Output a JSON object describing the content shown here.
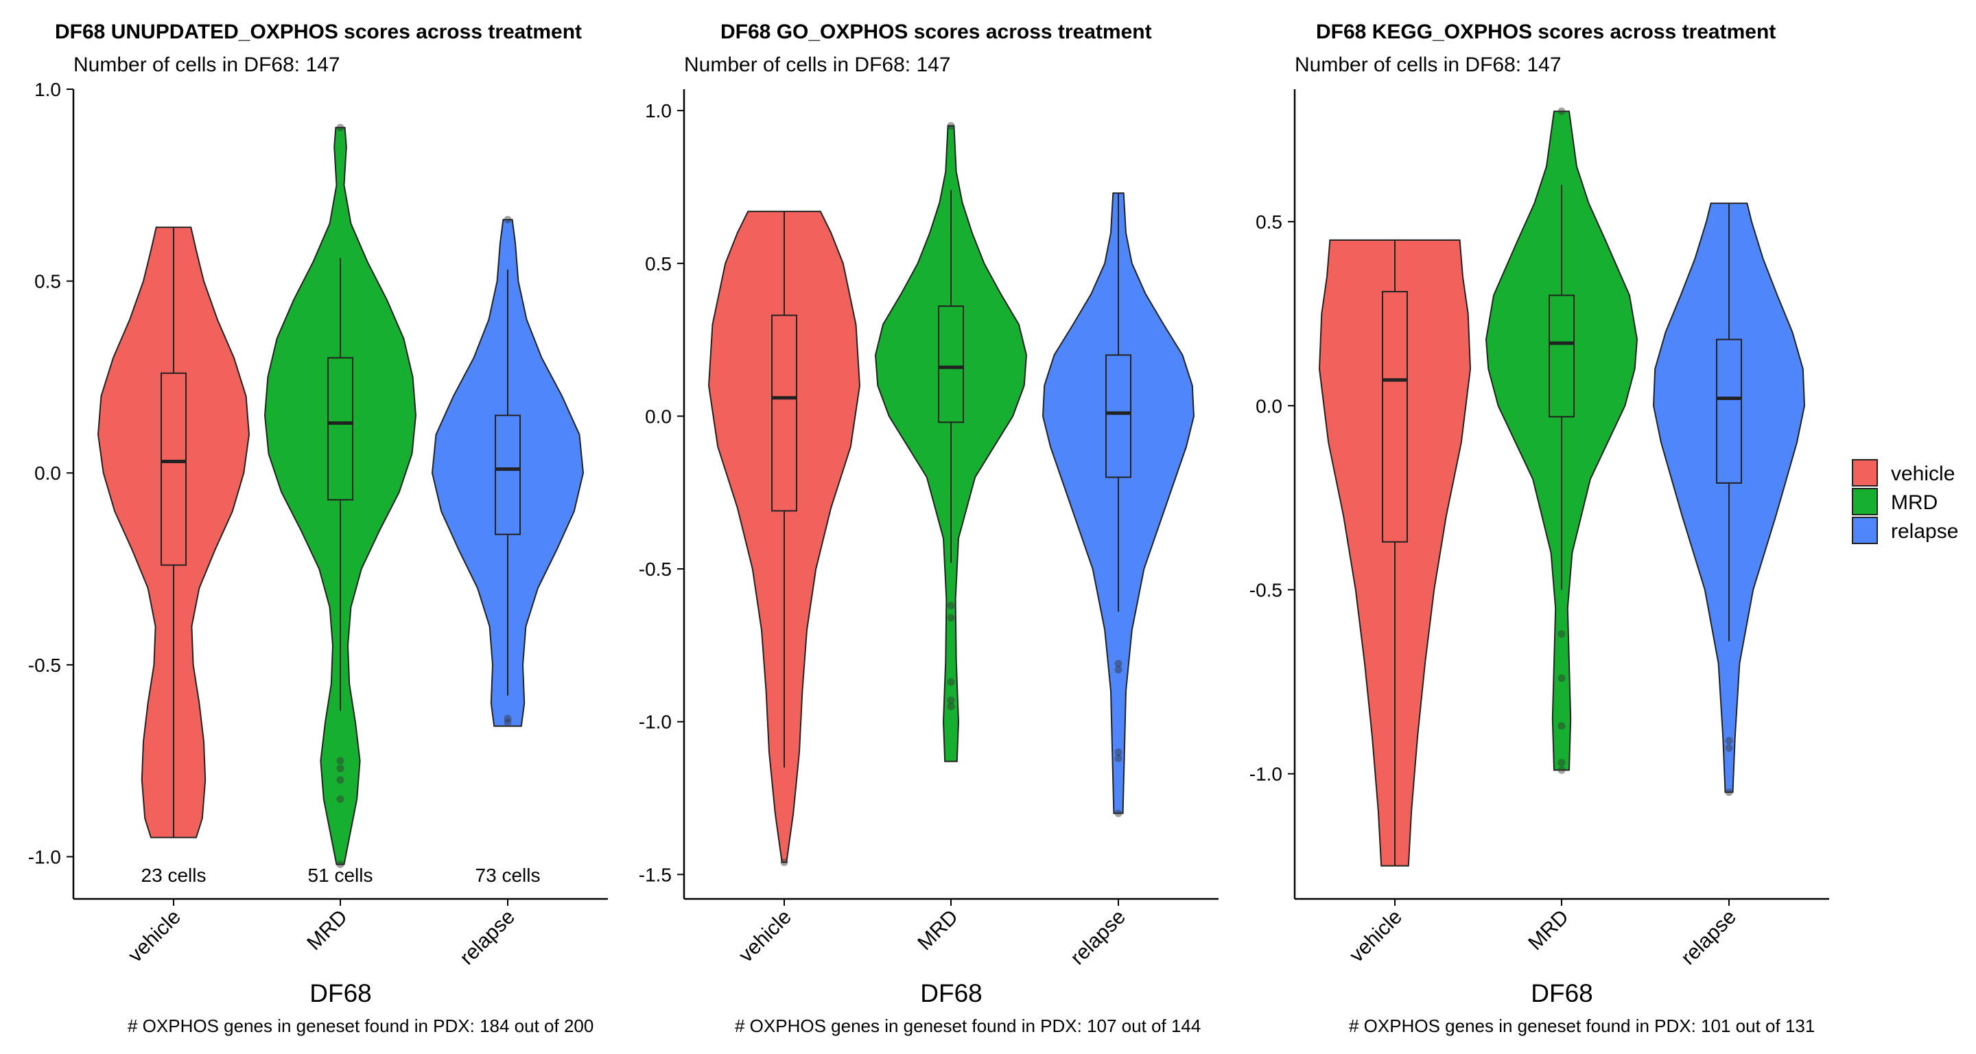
{
  "chart_data": [
    {
      "type": "violin",
      "title": "DF68 UNUPDATED_OXPHOS scores across treatment",
      "subtitle": "Number of cells in DF68: 147",
      "xlabel": "DF68",
      "ylabel": "",
      "caption": "# OXPHOS genes in geneset found in PDX: 184 out of 200",
      "ylim": [
        -1.11,
        1.0
      ],
      "yticks": [
        -1.0,
        -0.5,
        0.0,
        0.5,
        1.0
      ],
      "ytick_labels": [
        "-1.0",
        "-0.5",
        "0.0",
        "0.5",
        "1.0"
      ],
      "categories": [
        "vehicle",
        "MRD",
        "relapse"
      ],
      "cell_counts": [
        "23 cells",
        "51 cells",
        "73 cells"
      ],
      "groups": [
        {
          "name": "vehicle",
          "violin_min": -0.95,
          "violin_max": 0.64,
          "whisker_low": -0.95,
          "q1": -0.24,
          "median": 0.03,
          "q3": 0.26,
          "whisker_high": 0.64,
          "outliers": [],
          "density": [
            [
              -0.95,
              0.3
            ],
            [
              -0.9,
              0.38
            ],
            [
              -0.8,
              0.42
            ],
            [
              -0.7,
              0.4
            ],
            [
              -0.6,
              0.34
            ],
            [
              -0.5,
              0.26
            ],
            [
              -0.4,
              0.24
            ],
            [
              -0.3,
              0.34
            ],
            [
              -0.2,
              0.55
            ],
            [
              -0.1,
              0.78
            ],
            [
              0.0,
              0.93
            ],
            [
              0.1,
              1.0
            ],
            [
              0.2,
              0.96
            ],
            [
              0.3,
              0.8
            ],
            [
              0.4,
              0.58
            ],
            [
              0.5,
              0.4
            ],
            [
              0.58,
              0.3
            ],
            [
              0.64,
              0.23
            ]
          ]
        },
        {
          "name": "MRD",
          "violin_min": -1.02,
          "violin_max": 0.9,
          "whisker_low": -0.62,
          "q1": -0.07,
          "median": 0.13,
          "q3": 0.3,
          "whisker_high": 0.56,
          "outliers": [
            -0.75,
            -0.77,
            -0.8,
            -0.85,
            -1.02,
            0.9
          ],
          "density": [
            [
              -1.02,
              0.05
            ],
            [
              -0.95,
              0.12
            ],
            [
              -0.85,
              0.22
            ],
            [
              -0.75,
              0.26
            ],
            [
              -0.65,
              0.2
            ],
            [
              -0.55,
              0.12
            ],
            [
              -0.45,
              0.1
            ],
            [
              -0.35,
              0.14
            ],
            [
              -0.25,
              0.28
            ],
            [
              -0.15,
              0.52
            ],
            [
              -0.05,
              0.78
            ],
            [
              0.05,
              0.95
            ],
            [
              0.15,
              1.0
            ],
            [
              0.25,
              0.96
            ],
            [
              0.35,
              0.84
            ],
            [
              0.45,
              0.62
            ],
            [
              0.55,
              0.36
            ],
            [
              0.65,
              0.14
            ],
            [
              0.75,
              0.05
            ],
            [
              0.85,
              0.08
            ],
            [
              0.9,
              0.06
            ]
          ]
        },
        {
          "name": "relapse",
          "violin_min": -0.66,
          "violin_max": 0.66,
          "whisker_low": -0.58,
          "q1": -0.16,
          "median": 0.01,
          "q3": 0.15,
          "whisker_high": 0.53,
          "outliers": [
            -0.64,
            -0.65,
            0.66
          ],
          "density": [
            [
              -0.66,
              0.18
            ],
            [
              -0.6,
              0.22
            ],
            [
              -0.5,
              0.2
            ],
            [
              -0.4,
              0.24
            ],
            [
              -0.3,
              0.4
            ],
            [
              -0.2,
              0.65
            ],
            [
              -0.1,
              0.88
            ],
            [
              0.0,
              1.0
            ],
            [
              0.1,
              0.95
            ],
            [
              0.2,
              0.72
            ],
            [
              0.3,
              0.45
            ],
            [
              0.4,
              0.25
            ],
            [
              0.5,
              0.14
            ],
            [
              0.6,
              0.1
            ],
            [
              0.66,
              0.06
            ]
          ]
        }
      ]
    },
    {
      "type": "violin",
      "title": "DF68 GO_OXPHOS scores across treatment",
      "subtitle": "Number of cells in DF68: 147",
      "xlabel": "DF68",
      "ylabel": "",
      "caption": "# OXPHOS genes in geneset found in PDX: 107 out of 144",
      "ylim": [
        -1.58,
        1.07
      ],
      "yticks": [
        -1.5,
        -1.0,
        -0.5,
        0.0,
        0.5,
        1.0
      ],
      "ytick_labels": [
        "-1.5",
        "-1.0",
        "-0.5",
        "0.0",
        "0.5",
        "1.0"
      ],
      "categories": [
        "vehicle",
        "MRD",
        "relapse"
      ],
      "cell_counts": [],
      "groups": [
        {
          "name": "vehicle",
          "violin_min": -1.46,
          "violin_max": 0.67,
          "whisker_low": -1.15,
          "q1": -0.31,
          "median": 0.06,
          "q3": 0.33,
          "whisker_high": 0.67,
          "outliers": [
            -1.46
          ],
          "density": [
            [
              -1.46,
              0.03
            ],
            [
              -1.3,
              0.12
            ],
            [
              -1.1,
              0.2
            ],
            [
              -0.9,
              0.24
            ],
            [
              -0.7,
              0.3
            ],
            [
              -0.5,
              0.42
            ],
            [
              -0.3,
              0.62
            ],
            [
              -0.1,
              0.88
            ],
            [
              0.1,
              1.0
            ],
            [
              0.3,
              0.95
            ],
            [
              0.5,
              0.78
            ],
            [
              0.6,
              0.62
            ],
            [
              0.67,
              0.48
            ]
          ]
        },
        {
          "name": "MRD",
          "violin_min": -1.13,
          "violin_max": 0.95,
          "whisker_low": -0.48,
          "q1": -0.02,
          "median": 0.16,
          "q3": 0.36,
          "whisker_high": 0.74,
          "outliers": [
            -0.62,
            -0.66,
            -0.87,
            -0.93,
            -0.95,
            0.95
          ],
          "density": [
            [
              -1.13,
              0.08
            ],
            [
              -1.0,
              0.1
            ],
            [
              -0.8,
              0.07
            ],
            [
              -0.6,
              0.06
            ],
            [
              -0.4,
              0.1
            ],
            [
              -0.2,
              0.32
            ],
            [
              0.0,
              0.82
            ],
            [
              0.1,
              0.97
            ],
            [
              0.2,
              1.0
            ],
            [
              0.3,
              0.9
            ],
            [
              0.4,
              0.66
            ],
            [
              0.5,
              0.44
            ],
            [
              0.6,
              0.28
            ],
            [
              0.7,
              0.15
            ],
            [
              0.8,
              0.07
            ],
            [
              0.95,
              0.04
            ]
          ]
        },
        {
          "name": "relapse",
          "violin_min": -1.3,
          "violin_max": 0.73,
          "whisker_low": -0.64,
          "q1": -0.2,
          "median": 0.01,
          "q3": 0.2,
          "whisker_high": 0.73,
          "outliers": [
            -0.81,
            -0.83,
            -1.1,
            -1.12,
            -1.3
          ],
          "density": [
            [
              -1.3,
              0.06
            ],
            [
              -1.1,
              0.08
            ],
            [
              -0.9,
              0.1
            ],
            [
              -0.7,
              0.18
            ],
            [
              -0.5,
              0.34
            ],
            [
              -0.3,
              0.62
            ],
            [
              -0.1,
              0.9
            ],
            [
              0.0,
              1.0
            ],
            [
              0.1,
              0.98
            ],
            [
              0.2,
              0.85
            ],
            [
              0.3,
              0.6
            ],
            [
              0.4,
              0.36
            ],
            [
              0.5,
              0.18
            ],
            [
              0.6,
              0.1
            ],
            [
              0.73,
              0.07
            ]
          ]
        }
      ]
    },
    {
      "type": "violin",
      "title": "DF68 KEGG_OXPHOS scores across treatment",
      "subtitle": "Number of cells in DF68: 147",
      "xlabel": "DF68",
      "ylabel": "",
      "caption": "# OXPHOS genes in geneset found in PDX: 101 out of 131",
      "ylim": [
        -1.34,
        0.86
      ],
      "yticks": [
        -1.0,
        -0.5,
        0.0,
        0.5
      ],
      "ytick_labels": [
        "-1.0",
        "-0.5",
        "0.0",
        "0.5"
      ],
      "categories": [
        "vehicle",
        "MRD",
        "relapse"
      ],
      "cell_counts": [],
      "groups": [
        {
          "name": "vehicle",
          "violin_min": -1.25,
          "violin_max": 0.45,
          "whisker_low": -1.25,
          "q1": -0.37,
          "median": 0.07,
          "q3": 0.31,
          "whisker_high": 0.45,
          "outliers": [],
          "density": [
            [
              -1.25,
              0.18
            ],
            [
              -1.1,
              0.22
            ],
            [
              -0.9,
              0.3
            ],
            [
              -0.7,
              0.4
            ],
            [
              -0.5,
              0.52
            ],
            [
              -0.3,
              0.68
            ],
            [
              -0.1,
              0.88
            ],
            [
              0.1,
              1.0
            ],
            [
              0.25,
              0.97
            ],
            [
              0.35,
              0.9
            ],
            [
              0.45,
              0.86
            ]
          ]
        },
        {
          "name": "MRD",
          "violin_min": -0.99,
          "violin_max": 0.8,
          "whisker_low": -0.5,
          "q1": -0.03,
          "median": 0.17,
          "q3": 0.3,
          "whisker_high": 0.6,
          "outliers": [
            -0.62,
            -0.74,
            -0.87,
            -0.97,
            -0.99,
            0.8
          ],
          "density": [
            [
              -0.99,
              0.1
            ],
            [
              -0.85,
              0.12
            ],
            [
              -0.7,
              0.1
            ],
            [
              -0.55,
              0.08
            ],
            [
              -0.4,
              0.14
            ],
            [
              -0.2,
              0.38
            ],
            [
              0.0,
              0.84
            ],
            [
              0.1,
              0.97
            ],
            [
              0.18,
              1.0
            ],
            [
              0.3,
              0.9
            ],
            [
              0.45,
              0.58
            ],
            [
              0.55,
              0.36
            ],
            [
              0.65,
              0.2
            ],
            [
              0.8,
              0.1
            ]
          ]
        },
        {
          "name": "relapse",
          "violin_min": -1.05,
          "violin_max": 0.55,
          "whisker_low": -0.64,
          "q1": -0.21,
          "median": 0.02,
          "q3": 0.18,
          "whisker_high": 0.55,
          "outliers": [
            -0.91,
            -0.93,
            -1.05
          ],
          "density": [
            [
              -1.05,
              0.05
            ],
            [
              -0.9,
              0.08
            ],
            [
              -0.7,
              0.14
            ],
            [
              -0.5,
              0.32
            ],
            [
              -0.3,
              0.62
            ],
            [
              -0.1,
              0.9
            ],
            [
              0.0,
              1.0
            ],
            [
              0.1,
              0.98
            ],
            [
              0.2,
              0.84
            ],
            [
              0.3,
              0.64
            ],
            [
              0.4,
              0.45
            ],
            [
              0.5,
              0.3
            ],
            [
              0.55,
              0.24
            ]
          ]
        }
      ]
    }
  ],
  "legend": {
    "items": [
      {
        "label": "vehicle",
        "color": "#F2625D"
      },
      {
        "label": "MRD",
        "color": "#17AF30"
      },
      {
        "label": "relapse",
        "color": "#4F86FA"
      }
    ]
  }
}
